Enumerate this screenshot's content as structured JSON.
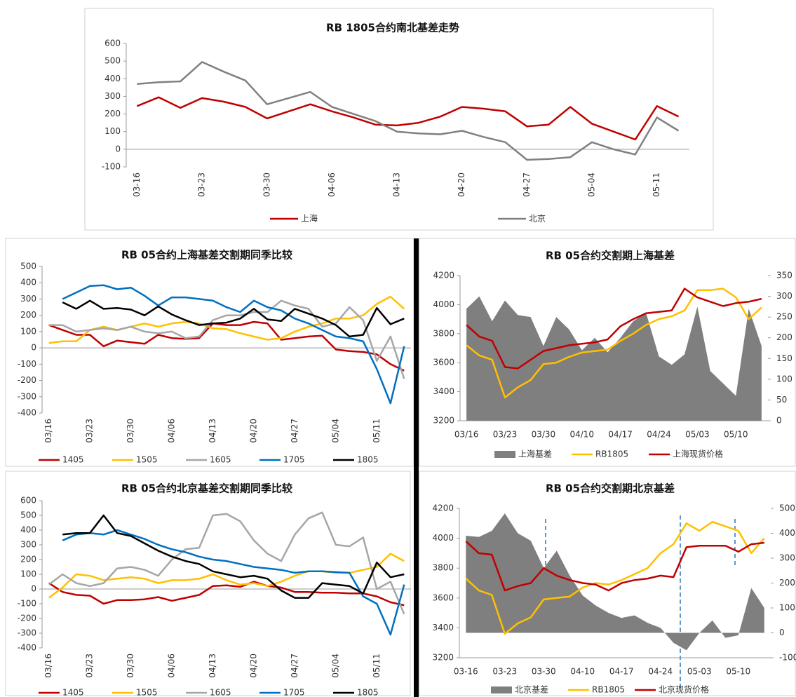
{
  "chart_data": [
    {
      "type": "line",
      "title": "RB 1805合约南北基差走势",
      "categories": [
        "03-16",
        null,
        null,
        "03-23",
        null,
        null,
        "03-30",
        null,
        null,
        "04-06",
        null,
        null,
        "04-13",
        null,
        null,
        "04-20",
        null,
        null,
        "04-27",
        null,
        null,
        "05-04",
        null,
        null,
        "05-11",
        null
      ],
      "ylim": [
        -100,
        600
      ],
      "yticks": [
        -100,
        0,
        100,
        200,
        300,
        400,
        500,
        600
      ],
      "series": [
        {
          "name": "上海",
          "color": "#c00000",
          "values": [
            245,
            295,
            235,
            290,
            270,
            240,
            175,
            215,
            255,
            215,
            180,
            140,
            135,
            150,
            185,
            240,
            230,
            215,
            130,
            140,
            240,
            145,
            100,
            55,
            245,
            185
          ]
        },
        {
          "name": "北京",
          "color": "#808080",
          "values": [
            370,
            380,
            385,
            495,
            440,
            390,
            255,
            290,
            325,
            240,
            200,
            160,
            100,
            90,
            85,
            105,
            70,
            40,
            -60,
            -55,
            -45,
            40,
            0,
            -30,
            180,
            105
          ]
        }
      ]
    },
    {
      "type": "line",
      "title": "RB 05合约上海基差交割期同季比较",
      "categories": [
        "03/16",
        null,
        null,
        "03/23",
        null,
        null,
        "03/30",
        null,
        null,
        "04/06",
        null,
        null,
        "04/13",
        null,
        null,
        "04/20",
        null,
        null,
        "04/27",
        null,
        null,
        "05/04",
        null,
        null,
        "05/11",
        null,
        null
      ],
      "ylim": [
        -400,
        500
      ],
      "yticks": [
        -400,
        -300,
        -200,
        -100,
        0,
        100,
        200,
        300,
        400,
        500
      ],
      "series": [
        {
          "name": "1405",
          "color": "#c00000",
          "values": [
            140,
            110,
            80,
            80,
            10,
            45,
            35,
            25,
            80,
            60,
            55,
            60,
            150,
            140,
            140,
            160,
            150,
            50,
            60,
            70,
            75,
            -10,
            -20,
            -25,
            -40,
            -100,
            -140
          ]
        },
        {
          "name": "1505",
          "color": "#ffc000",
          "values": [
            30,
            40,
            40,
            110,
            130,
            110,
            130,
            150,
            130,
            150,
            160,
            150,
            120,
            115,
            90,
            70,
            50,
            60,
            100,
            130,
            150,
            180,
            180,
            200,
            270,
            315,
            240
          ]
        },
        {
          "name": "1605",
          "color": "#a6a6a6",
          "values": [
            140,
            140,
            100,
            110,
            120,
            110,
            130,
            100,
            90,
            100,
            60,
            70,
            170,
            200,
            200,
            220,
            220,
            290,
            260,
            240,
            130,
            150,
            250,
            170,
            -80,
            70,
            -190
          ]
        },
        {
          "name": "1705",
          "color": "#0070c0",
          "values": [
            null,
            300,
            340,
            380,
            385,
            360,
            370,
            320,
            260,
            310,
            310,
            300,
            290,
            250,
            220,
            290,
            250,
            230,
            180,
            150,
            110,
            70,
            60,
            40,
            -130,
            -340,
            10
          ]
        },
        {
          "name": "1805",
          "color": "#000000",
          "values": [
            null,
            280,
            240,
            290,
            240,
            245,
            235,
            200,
            255,
            205,
            170,
            140,
            150,
            155,
            180,
            240,
            175,
            165,
            240,
            210,
            180,
            140,
            70,
            80,
            245,
            145,
            180
          ]
        }
      ]
    },
    {
      "type": "line",
      "title": "RB 05合约北京基差交割期同季比较",
      "categories": [
        "03/16",
        null,
        null,
        "03/23",
        null,
        null,
        "03/30",
        null,
        null,
        "04/06",
        null,
        null,
        "04/13",
        null,
        null,
        "04/20",
        null,
        null,
        "04/27",
        null,
        null,
        "05/04",
        null,
        null,
        "05/11",
        null,
        null
      ],
      "ylim": [
        -400,
        600
      ],
      "yticks": [
        -400,
        -300,
        -200,
        -100,
        0,
        100,
        200,
        300,
        400,
        500,
        600
      ],
      "series": [
        {
          "name": "1405",
          "color": "#c00000",
          "values": [
            40,
            -20,
            -40,
            -45,
            -100,
            -75,
            -75,
            -70,
            -55,
            -80,
            -60,
            -40,
            20,
            25,
            15,
            50,
            20,
            10,
            -20,
            -20,
            -25,
            -25,
            -30,
            -30,
            -50,
            -90,
            -110
          ]
        },
        {
          "name": "1505",
          "color": "#ffc000",
          "values": [
            -60,
            10,
            100,
            90,
            60,
            70,
            80,
            70,
            40,
            60,
            60,
            70,
            100,
            60,
            30,
            40,
            20,
            50,
            90,
            120,
            120,
            110,
            110,
            130,
            150,
            240,
            190
          ]
        },
        {
          "name": "1605",
          "color": "#a6a6a6",
          "values": [
            30,
            100,
            40,
            20,
            40,
            140,
            150,
            130,
            90,
            200,
            270,
            280,
            500,
            510,
            460,
            330,
            240,
            190,
            370,
            480,
            520,
            300,
            290,
            350,
            0,
            50,
            -170
          ]
        },
        {
          "name": "1705",
          "color": "#0070c0",
          "values": [
            null,
            330,
            370,
            380,
            370,
            400,
            370,
            340,
            300,
            270,
            250,
            220,
            200,
            190,
            170,
            150,
            140,
            130,
            110,
            120,
            120,
            115,
            110,
            -50,
            -100,
            -310,
            30
          ]
        },
        {
          "name": "1805",
          "color": "#000000",
          "values": [
            null,
            370,
            380,
            380,
            500,
            380,
            360,
            310,
            260,
            220,
            190,
            170,
            120,
            100,
            80,
            90,
            70,
            -10,
            -60,
            -60,
            40,
            30,
            20,
            -30,
            180,
            80,
            100
          ]
        }
      ]
    },
    {
      "type": "combo",
      "title": "RB 05合约交割期上海基差",
      "categories": [
        "03/16",
        null,
        null,
        "03/23",
        null,
        null,
        "03/30",
        null,
        null,
        "04/10",
        null,
        null,
        "04/17",
        null,
        null,
        "04/24",
        null,
        null,
        "05/03",
        null,
        null,
        "05/10",
        null,
        null
      ],
      "ylim": [
        3200,
        4200
      ],
      "yticks": [
        3200,
        3400,
        3600,
        3800,
        4000,
        4200
      ],
      "y2lim": [
        0,
        350
      ],
      "y2ticks": [
        0,
        50,
        100,
        150,
        200,
        250,
        300,
        350
      ],
      "series": [
        {
          "name": "上海基差",
          "type": "area",
          "axis": "y2",
          "color": "#7f7f7f",
          "values": [
            270,
            300,
            240,
            290,
            255,
            250,
            180,
            250,
            220,
            170,
            200,
            165,
            200,
            240,
            260,
            155,
            135,
            160,
            275,
            120,
            90,
            60,
            270,
            180
          ]
        },
        {
          "name": "RB1805",
          "type": "line",
          "color": "#ffc000",
          "values": [
            3720,
            3650,
            3620,
            3360,
            3430,
            3480,
            3590,
            3600,
            3640,
            3670,
            3680,
            3690,
            3750,
            3800,
            3860,
            3900,
            3920,
            3960,
            4100,
            4100,
            4110,
            4050,
            3900,
            3980
          ]
        },
        {
          "name": "上海现货价格",
          "type": "line",
          "color": "#c00000",
          "values": [
            3860,
            3780,
            3750,
            3570,
            3560,
            3620,
            3680,
            3700,
            3720,
            3730,
            3740,
            3760,
            3850,
            3900,
            3940,
            3950,
            3960,
            4110,
            4050,
            4020,
            3990,
            4010,
            4020,
            4040
          ]
        }
      ]
    },
    {
      "type": "combo",
      "title": "RB 05合约交割期北京基差",
      "categories": [
        "03-16",
        null,
        null,
        "03-23",
        null,
        null,
        "03-30",
        null,
        null,
        "04-10",
        null,
        null,
        "04-17",
        null,
        null,
        "04-24",
        null,
        null,
        "05-03",
        null,
        null,
        "05-10",
        null,
        null
      ],
      "ylim": [
        3200,
        4200
      ],
      "yticks": [
        3200,
        3400,
        3600,
        3800,
        4000,
        4200
      ],
      "y2lim": [
        -100,
        500
      ],
      "y2ticks": [
        -100,
        0,
        100,
        200,
        300,
        400,
        500
      ],
      "series": [
        {
          "name": "北京基差",
          "type": "area",
          "axis": "y2",
          "color": "#7f7f7f",
          "values": [
            390,
            385,
            410,
            480,
            400,
            370,
            260,
            330,
            230,
            150,
            110,
            80,
            60,
            70,
            40,
            20,
            -40,
            -70,
            0,
            50,
            -20,
            -10,
            180,
            100
          ]
        },
        {
          "name": "RB1805",
          "type": "line",
          "color": "#ffc000",
          "values": [
            3730,
            3650,
            3620,
            3360,
            3430,
            3470,
            3590,
            3600,
            3610,
            3670,
            3700,
            3690,
            3720,
            3760,
            3800,
            3900,
            3960,
            4100,
            4050,
            4110,
            4080,
            4050,
            3900,
            4000
          ]
        },
        {
          "name": "北京现货价格",
          "type": "line",
          "color": "#c00000",
          "values": [
            3980,
            3900,
            3890,
            3650,
            3680,
            3700,
            3800,
            3750,
            3720,
            3700,
            3690,
            3650,
            3700,
            3720,
            3730,
            3750,
            3740,
            3940,
            3950,
            3950,
            3950,
            3910,
            3960,
            3970
          ]
        }
      ]
    }
  ]
}
